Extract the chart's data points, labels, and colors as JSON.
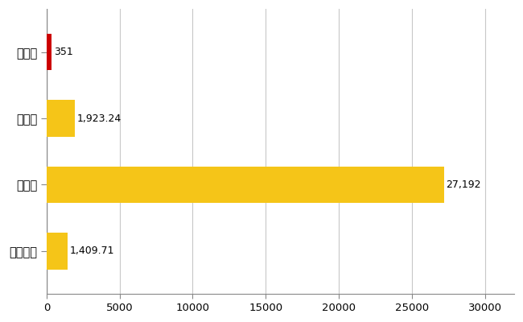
{
  "categories": [
    "桂川町",
    "県平均",
    "県最大",
    "全国平均"
  ],
  "values": [
    351,
    1923.24,
    27192,
    1409.71
  ],
  "bar_colors": [
    "#cc0000",
    "#f5c518",
    "#f5c518",
    "#f5c518"
  ],
  "value_labels": [
    "351",
    "1,923.24",
    "27,192",
    "1,409.71"
  ],
  "xlim": [
    0,
    32000
  ],
  "xticks": [
    0,
    5000,
    10000,
    15000,
    20000,
    25000,
    30000
  ],
  "xtick_labels": [
    "0",
    "5000",
    "10000",
    "15000",
    "20000",
    "25000",
    "30000"
  ],
  "background_color": "#ffffff",
  "grid_color": "#c8c8c8",
  "bar_height": 0.55,
  "label_fontsize": 10.5,
  "tick_fontsize": 9.5,
  "value_label_fontsize": 9,
  "figsize": [
    6.5,
    4.0
  ],
  "dpi": 100
}
